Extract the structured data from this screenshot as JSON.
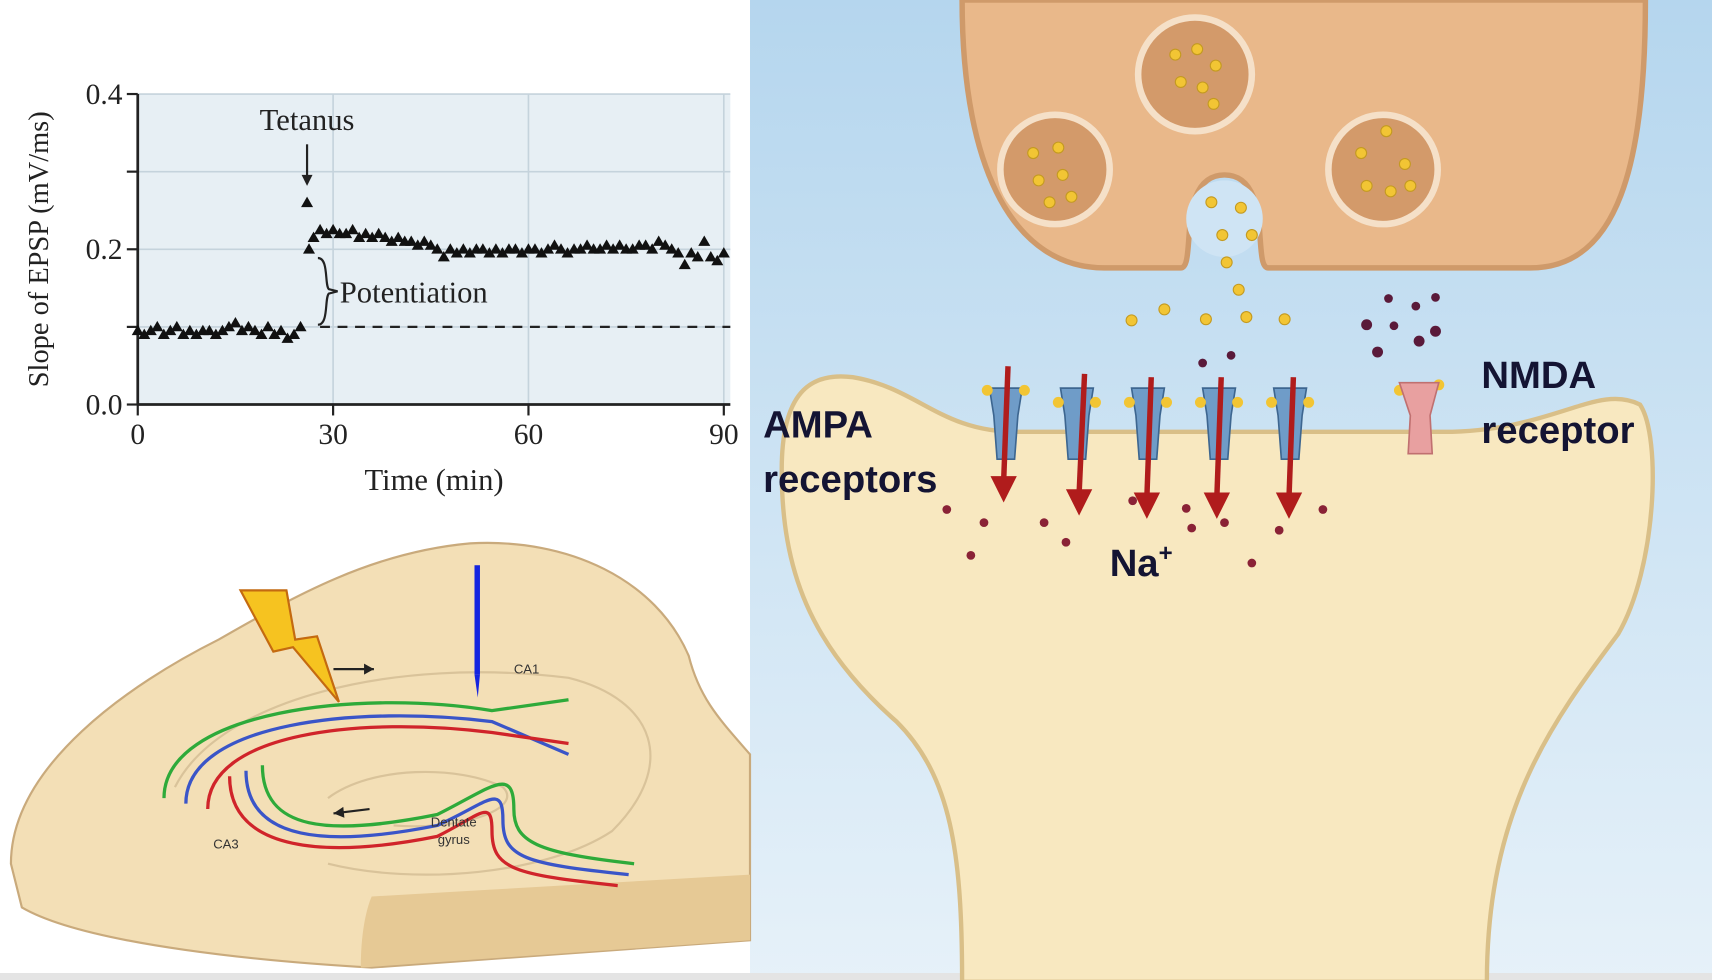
{
  "chart_data": {
    "type": "scatter",
    "x_label": "Time (min)",
    "y_label": "Slope of EPSP (mV/ms)",
    "xlim": [
      0,
      91
    ],
    "ylim": [
      0,
      0.4
    ],
    "xticks": [
      0,
      30,
      60,
      90
    ],
    "yticks": [
      {
        "value": 0,
        "label": "0.0"
      },
      {
        "value": 0.2,
        "label": "0.2"
      },
      {
        "value": 0.4,
        "label": "0.4"
      }
    ],
    "minor_yticks": [
      0.1,
      0.3
    ],
    "grid": true,
    "tetanus": {
      "label": "Tetanus",
      "x": 26
    },
    "potentiation": {
      "label": "Potentiation",
      "x": 28,
      "baseline": 0.1,
      "level": 0.2
    },
    "x": [
      0,
      1,
      2,
      3,
      4,
      5,
      6,
      7,
      8,
      9,
      10,
      11,
      12,
      13,
      14,
      15,
      16,
      17,
      18,
      19,
      20,
      21,
      22,
      23,
      24,
      25,
      26,
      26.3,
      27,
      28,
      29,
      30,
      31,
      32,
      33,
      34,
      35,
      36,
      37,
      38,
      39,
      40,
      41,
      42,
      43,
      44,
      45,
      46,
      47,
      48,
      49,
      50,
      51,
      52,
      53,
      54,
      55,
      56,
      57,
      58,
      59,
      60,
      61,
      62,
      63,
      64,
      65,
      66,
      67,
      68,
      69,
      70,
      71,
      72,
      73,
      74,
      75,
      76,
      77,
      78,
      79,
      80,
      81,
      82,
      83,
      84,
      85,
      86,
      87,
      88,
      89,
      90
    ],
    "series": [
      {
        "name": "EPSP slope",
        "color": "#111111",
        "values": [
          0.095,
          0.09,
          0.095,
          0.1,
          0.09,
          0.095,
          0.1,
          0.09,
          0.095,
          0.09,
          0.095,
          0.095,
          0.09,
          0.095,
          0.1,
          0.105,
          0.095,
          0.1,
          0.095,
          0.09,
          0.1,
          0.09,
          0.095,
          0.085,
          0.09,
          0.1,
          0.26,
          0.2,
          0.215,
          0.225,
          0.22,
          0.225,
          0.22,
          0.22,
          0.225,
          0.215,
          0.22,
          0.215,
          0.22,
          0.215,
          0.21,
          0.215,
          0.21,
          0.21,
          0.205,
          0.21,
          0.205,
          0.2,
          0.19,
          0.2,
          0.195,
          0.2,
          0.195,
          0.2,
          0.2,
          0.195,
          0.2,
          0.195,
          0.2,
          0.2,
          0.195,
          0.2,
          0.2,
          0.195,
          0.2,
          0.205,
          0.2,
          0.195,
          0.2,
          0.2,
          0.205,
          0.2,
          0.2,
          0.205,
          0.2,
          0.205,
          0.2,
          0.2,
          0.205,
          0.205,
          0.2,
          0.21,
          0.205,
          0.2,
          0.195,
          0.18,
          0.195,
          0.19,
          0.21,
          0.19,
          0.185,
          0.195
        ]
      }
    ]
  },
  "hippocampus": {
    "ca1": "CA1",
    "ca3": "CA3",
    "dentate": [
      "Dentate",
      "gyrus"
    ]
  },
  "synapse": {
    "ampa": [
      "AMPA",
      "receptors"
    ],
    "nmda": [
      "NMDA",
      "receptor"
    ],
    "ion": "Na",
    "ion_charge": "+"
  }
}
